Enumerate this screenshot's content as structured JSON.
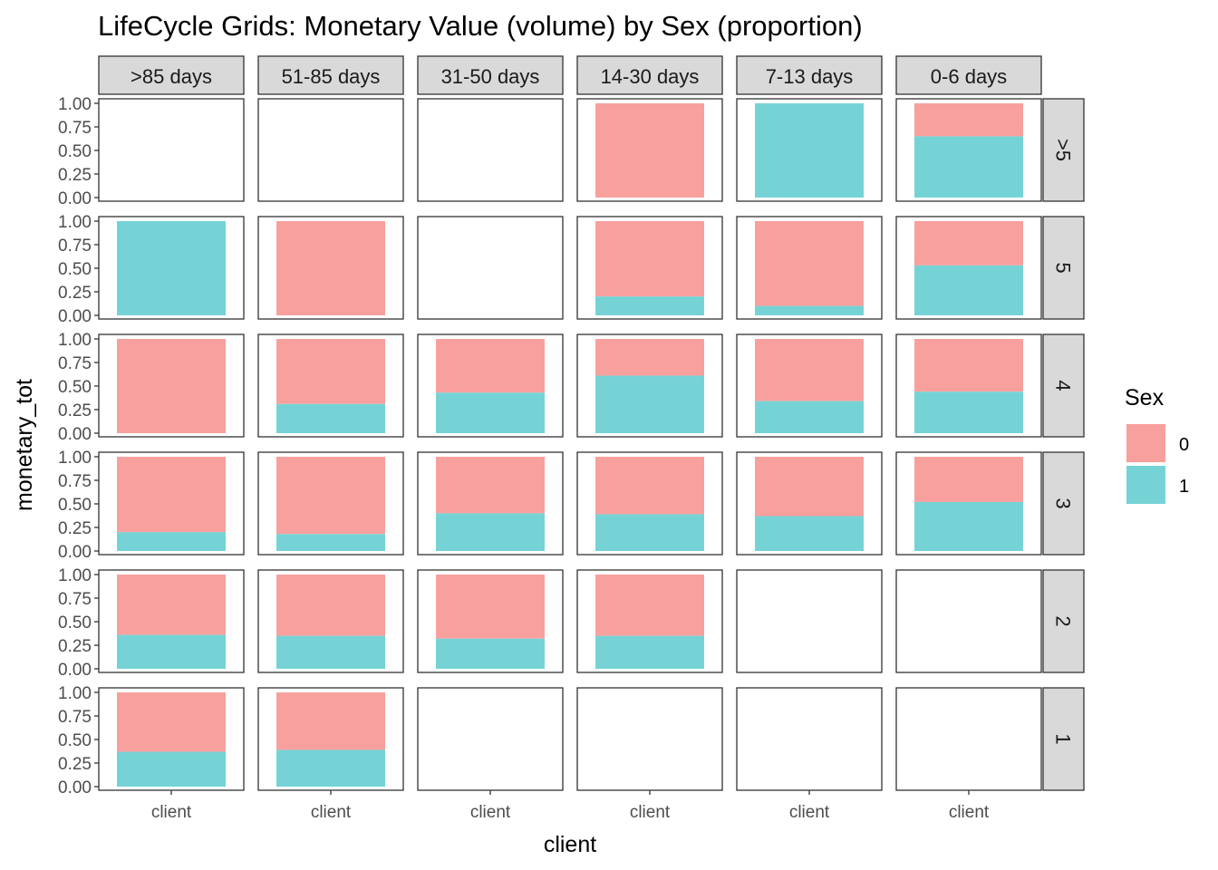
{
  "chart_data": {
    "type": "bar",
    "title": "LifeCycle Grids: Monetary Value (volume) by Sex (proportion)",
    "xlabel": "client",
    "ylabel": "monetary_tot",
    "x_tick_label": "client",
    "y_ticks": [
      "1.00",
      "0.75",
      "0.50",
      "0.25",
      "0.00"
    ],
    "ylim": [
      0,
      1
    ],
    "col_facets": [
      ">85 days",
      "51-85 days",
      "31-50 days",
      "14-30 days",
      "7-13 days",
      "0-6 days"
    ],
    "row_facets": [
      ">5",
      "5",
      "4",
      "3",
      "2",
      "1"
    ],
    "legend": {
      "title": "Sex",
      "position": "right",
      "entries": [
        {
          "label": "0",
          "color": "#F8A09E"
        },
        {
          "label": "1",
          "color": "#76D3D5"
        }
      ]
    },
    "grid": false,
    "stacked": "fill",
    "note_cells": "cells[row][col] = proportion of Sex 1 (lower segment); null = no data",
    "cells": [
      [
        null,
        null,
        null,
        0.0,
        1.0,
        0.65
      ],
      [
        1.0,
        0.0,
        null,
        0.2,
        0.1,
        0.53
      ],
      [
        0.0,
        0.31,
        0.43,
        0.61,
        0.34,
        0.44
      ],
      [
        0.2,
        0.18,
        0.4,
        0.39,
        0.37,
        0.52
      ],
      [
        0.36,
        0.35,
        0.32,
        0.35,
        null,
        null
      ],
      [
        0.37,
        0.39,
        null,
        null,
        null,
        null
      ]
    ]
  }
}
